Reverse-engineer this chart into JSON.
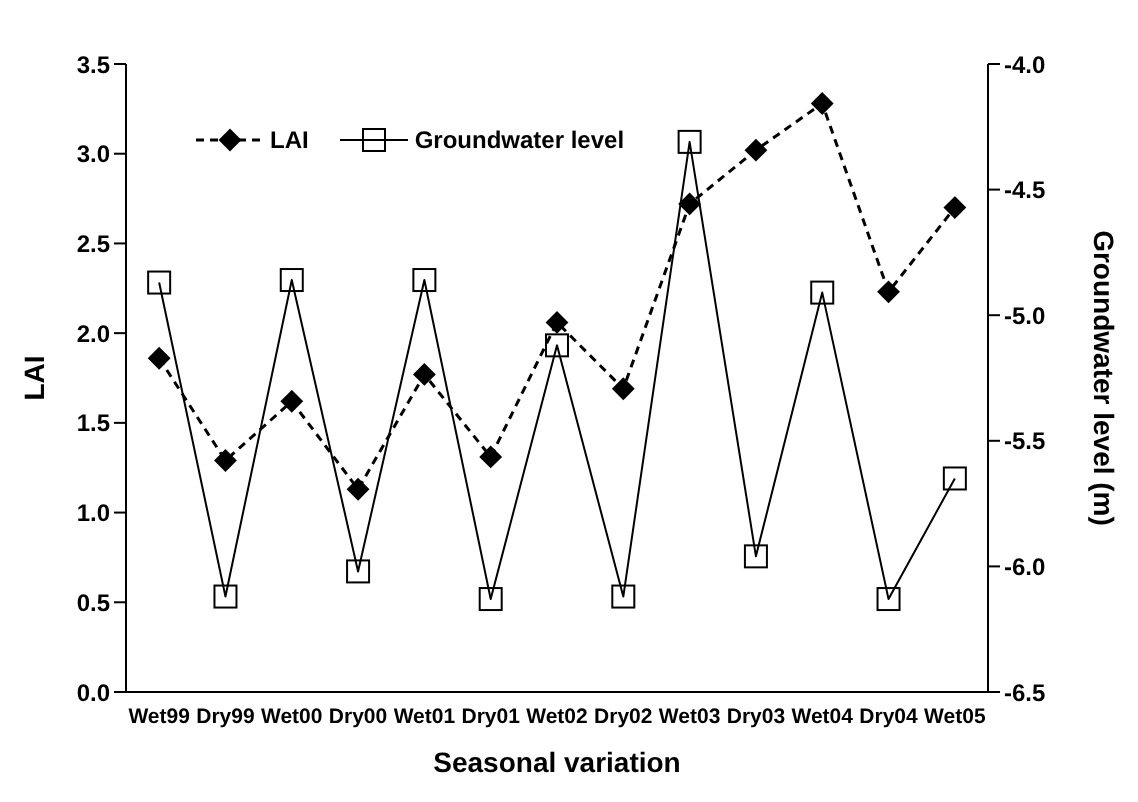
{
  "chart_data": {
    "type": "line",
    "xlabel": "Seasonal variation",
    "ylabel": "LAI",
    "y2label": "Groundwater level (m)",
    "categories": [
      "Wet99",
      "Dry99",
      "Wet00",
      "Dry00",
      "Wet01",
      "Dry01",
      "Wet02",
      "Dry02",
      "Wet03",
      "Dry03",
      "Wet04",
      "Dry04",
      "Wet05"
    ],
    "series": [
      {
        "name": "LAI",
        "color": "#000000",
        "marker": "diamond",
        "line_style": "dashed",
        "values": [
          1.86,
          1.29,
          1.62,
          1.13,
          1.77,
          1.31,
          2.06,
          1.69,
          2.72,
          3.02,
          3.28,
          2.23,
          2.7
        ]
      },
      {
        "name": "Groundwater level",
        "color": "#000000",
        "marker": "square",
        "line_style": "solid",
        "axis": "y2",
        "values": [
          -4.87,
          -6.12,
          -4.86,
          -6.02,
          -4.86,
          -6.13,
          -5.12,
          -6.12,
          -4.31,
          -5.96,
          -4.91,
          -6.13,
          -5.65
        ]
      }
    ],
    "ylim": [
      0,
      3.5
    ],
    "yticks": [
      {
        "value": 0,
        "label": "0.0"
      },
      {
        "value": 0.5,
        "label": "0.5"
      },
      {
        "value": 1,
        "label": "1.0"
      },
      {
        "value": 1.5,
        "label": "1.5"
      },
      {
        "value": 2,
        "label": "2.0"
      },
      {
        "value": 2.5,
        "label": "2.5"
      },
      {
        "value": 3,
        "label": "3.0"
      },
      {
        "value": 3.5,
        "label": "3.5"
      }
    ],
    "y2lim": [
      -6.5,
      -4
    ],
    "y2ticks": [
      {
        "value": -6.5,
        "label": "-6.5"
      },
      {
        "value": -6,
        "label": "-6.0"
      },
      {
        "value": -5.5,
        "label": "-5.5"
      },
      {
        "value": -5,
        "label": "-5.0"
      },
      {
        "value": -4.5,
        "label": "-4.5"
      },
      {
        "value": -4,
        "label": "-4.0"
      }
    ],
    "grid": false,
    "legend": "top left"
  }
}
